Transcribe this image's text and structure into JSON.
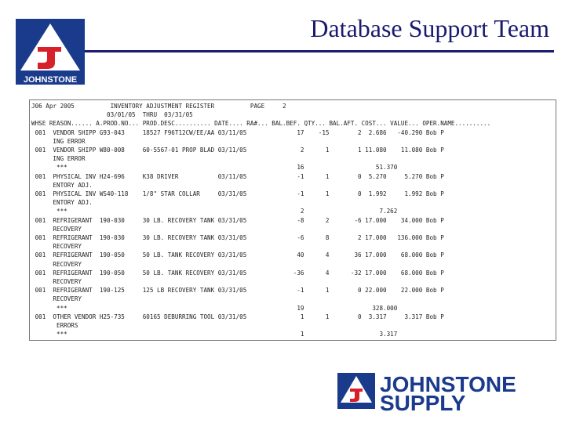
{
  "header": {
    "title": "Database Support Team",
    "logo_text": "JOHNSTONE"
  },
  "report": {
    "lines": [
      "J06 Apr 2005          INVENTORY ADJUSTMENT REGISTER          PAGE     2",
      "                     03/01/05  THRU  03/31/05",
      "WHSE REASON...... A.PROD.NO... PROD.DESC.......... DATE.... RA#... BAL.BEF. QTY... BAL.AFT. COST... VALUE... OPER.NAME..........",
      " 001  VENDOR SHIPP G93-043     18527 F96T12CW/EE/AA 03/11/05              17    -15        2  2.686   -40.290 Bob P",
      "      ING ERROR",
      " 001  VENDOR SHIPP W80-008     60-5567-01 PROP BLAD 03/11/05               2      1        1 11.080    11.080 Bob P",
      "      ING ERROR",
      "       ***                                                                16                    51.370",
      " 001  PHYSICAL INV H24-696     K38 DRIVER           03/11/05              -1      1        0  5.270     5.270 Bob P",
      "      ENTORY ADJ.",
      " 001  PHYSICAL INV WS40-118    1/8\" STAR COLLAR     03/31/05              -1      1        0  1.992     1.992 Bob P",
      "      ENTORY ADJ.",
      "       ***                                                                 2                     7.262",
      " 001  REFRIGERANT  190-030     30 LB. RECOVERY TANK 03/31/05              -8      2       -6 17.000    34.000 Bob P",
      "      RECOVERY",
      " 001  REFRIGERANT  190-030     30 LB. RECOVERY TANK 03/31/05              -6      8        2 17.000   136.000 Bob P",
      "      RECOVERY",
      " 001  REFRIGERANT  190-050     50 LB. TANK RECOVERY 03/31/05              40      4       36 17.000    68.000 Bob P",
      "      RECOVERY",
      " 001  REFRIGERANT  190-050     50 LB. TANK RECOVERY 03/31/05             -36      4      -32 17.000    68.000 Bob P",
      "      RECOVERY",
      " 001  REFRIGERANT  190-125     125 LB RECOVERY TANK 03/31/05              -1      1        0 22.000    22.000 Bob P",
      "      RECOVERY",
      "       ***                                                                19                   328.000",
      " 001  OTHER VENDOR H25-735     60165 DEBURRING TOOL 03/31/05               1      1        0  3.317     3.317 Bob P",
      "       ERRORS",
      "       ***                                                                 1                     3.317"
    ]
  },
  "footer": {
    "brand_line1": "JOHNSTONE",
    "brand_line2": "SUPPLY"
  }
}
